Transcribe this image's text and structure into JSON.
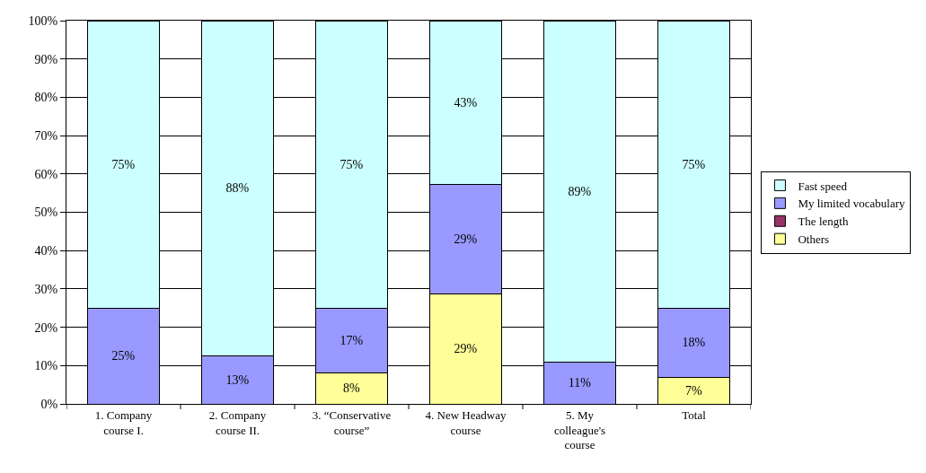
{
  "chart_data": {
    "type": "bar",
    "stacked": true,
    "categories": [
      "1. Company course I.",
      "2. Company course II.",
      "3. “Conservative course”",
      "4. New Headway course",
      "5. My colleague's course",
      "Total"
    ],
    "series": [
      {
        "name": "Others",
        "color": "#ffff99",
        "values": [
          0,
          0,
          8,
          28.6,
          0,
          7
        ],
        "value_labels": [
          null,
          null,
          "8%",
          "29%",
          null,
          "7%"
        ]
      },
      {
        "name": "The length",
        "color": "#993366",
        "values": [
          0,
          0,
          0,
          0,
          0,
          0
        ],
        "value_labels": [
          null,
          null,
          null,
          null,
          null,
          null
        ]
      },
      {
        "name": "My limited vocabulary",
        "color": "#9999ff",
        "values": [
          25,
          12.5,
          17,
          28.6,
          11,
          18
        ],
        "value_labels": [
          "25%",
          "13%",
          "17%",
          "29%",
          "11%",
          "18%"
        ]
      },
      {
        "name": "Fast speed",
        "color": "#ccffff",
        "values": [
          75,
          87.5,
          75,
          42.8,
          89,
          75
        ],
        "value_labels": [
          "75%",
          "88%",
          "75%",
          "43%",
          "89%",
          "75%"
        ]
      }
    ],
    "ylim": [
      0,
      100
    ],
    "yticks": [
      {
        "value": 0,
        "label": "0%"
      },
      {
        "value": 10,
        "label": "10%"
      },
      {
        "value": 20,
        "label": "20%"
      },
      {
        "value": 30,
        "label": "30%"
      },
      {
        "value": 40,
        "label": "40%"
      },
      {
        "value": 50,
        "label": "50%"
      },
      {
        "value": 60,
        "label": "60%"
      },
      {
        "value": 70,
        "label": "70%"
      },
      {
        "value": 80,
        "label": "80%"
      },
      {
        "value": 90,
        "label": "90%"
      },
      {
        "value": 100,
        "label": "100%"
      }
    ],
    "grid": "y",
    "legend": "right"
  }
}
